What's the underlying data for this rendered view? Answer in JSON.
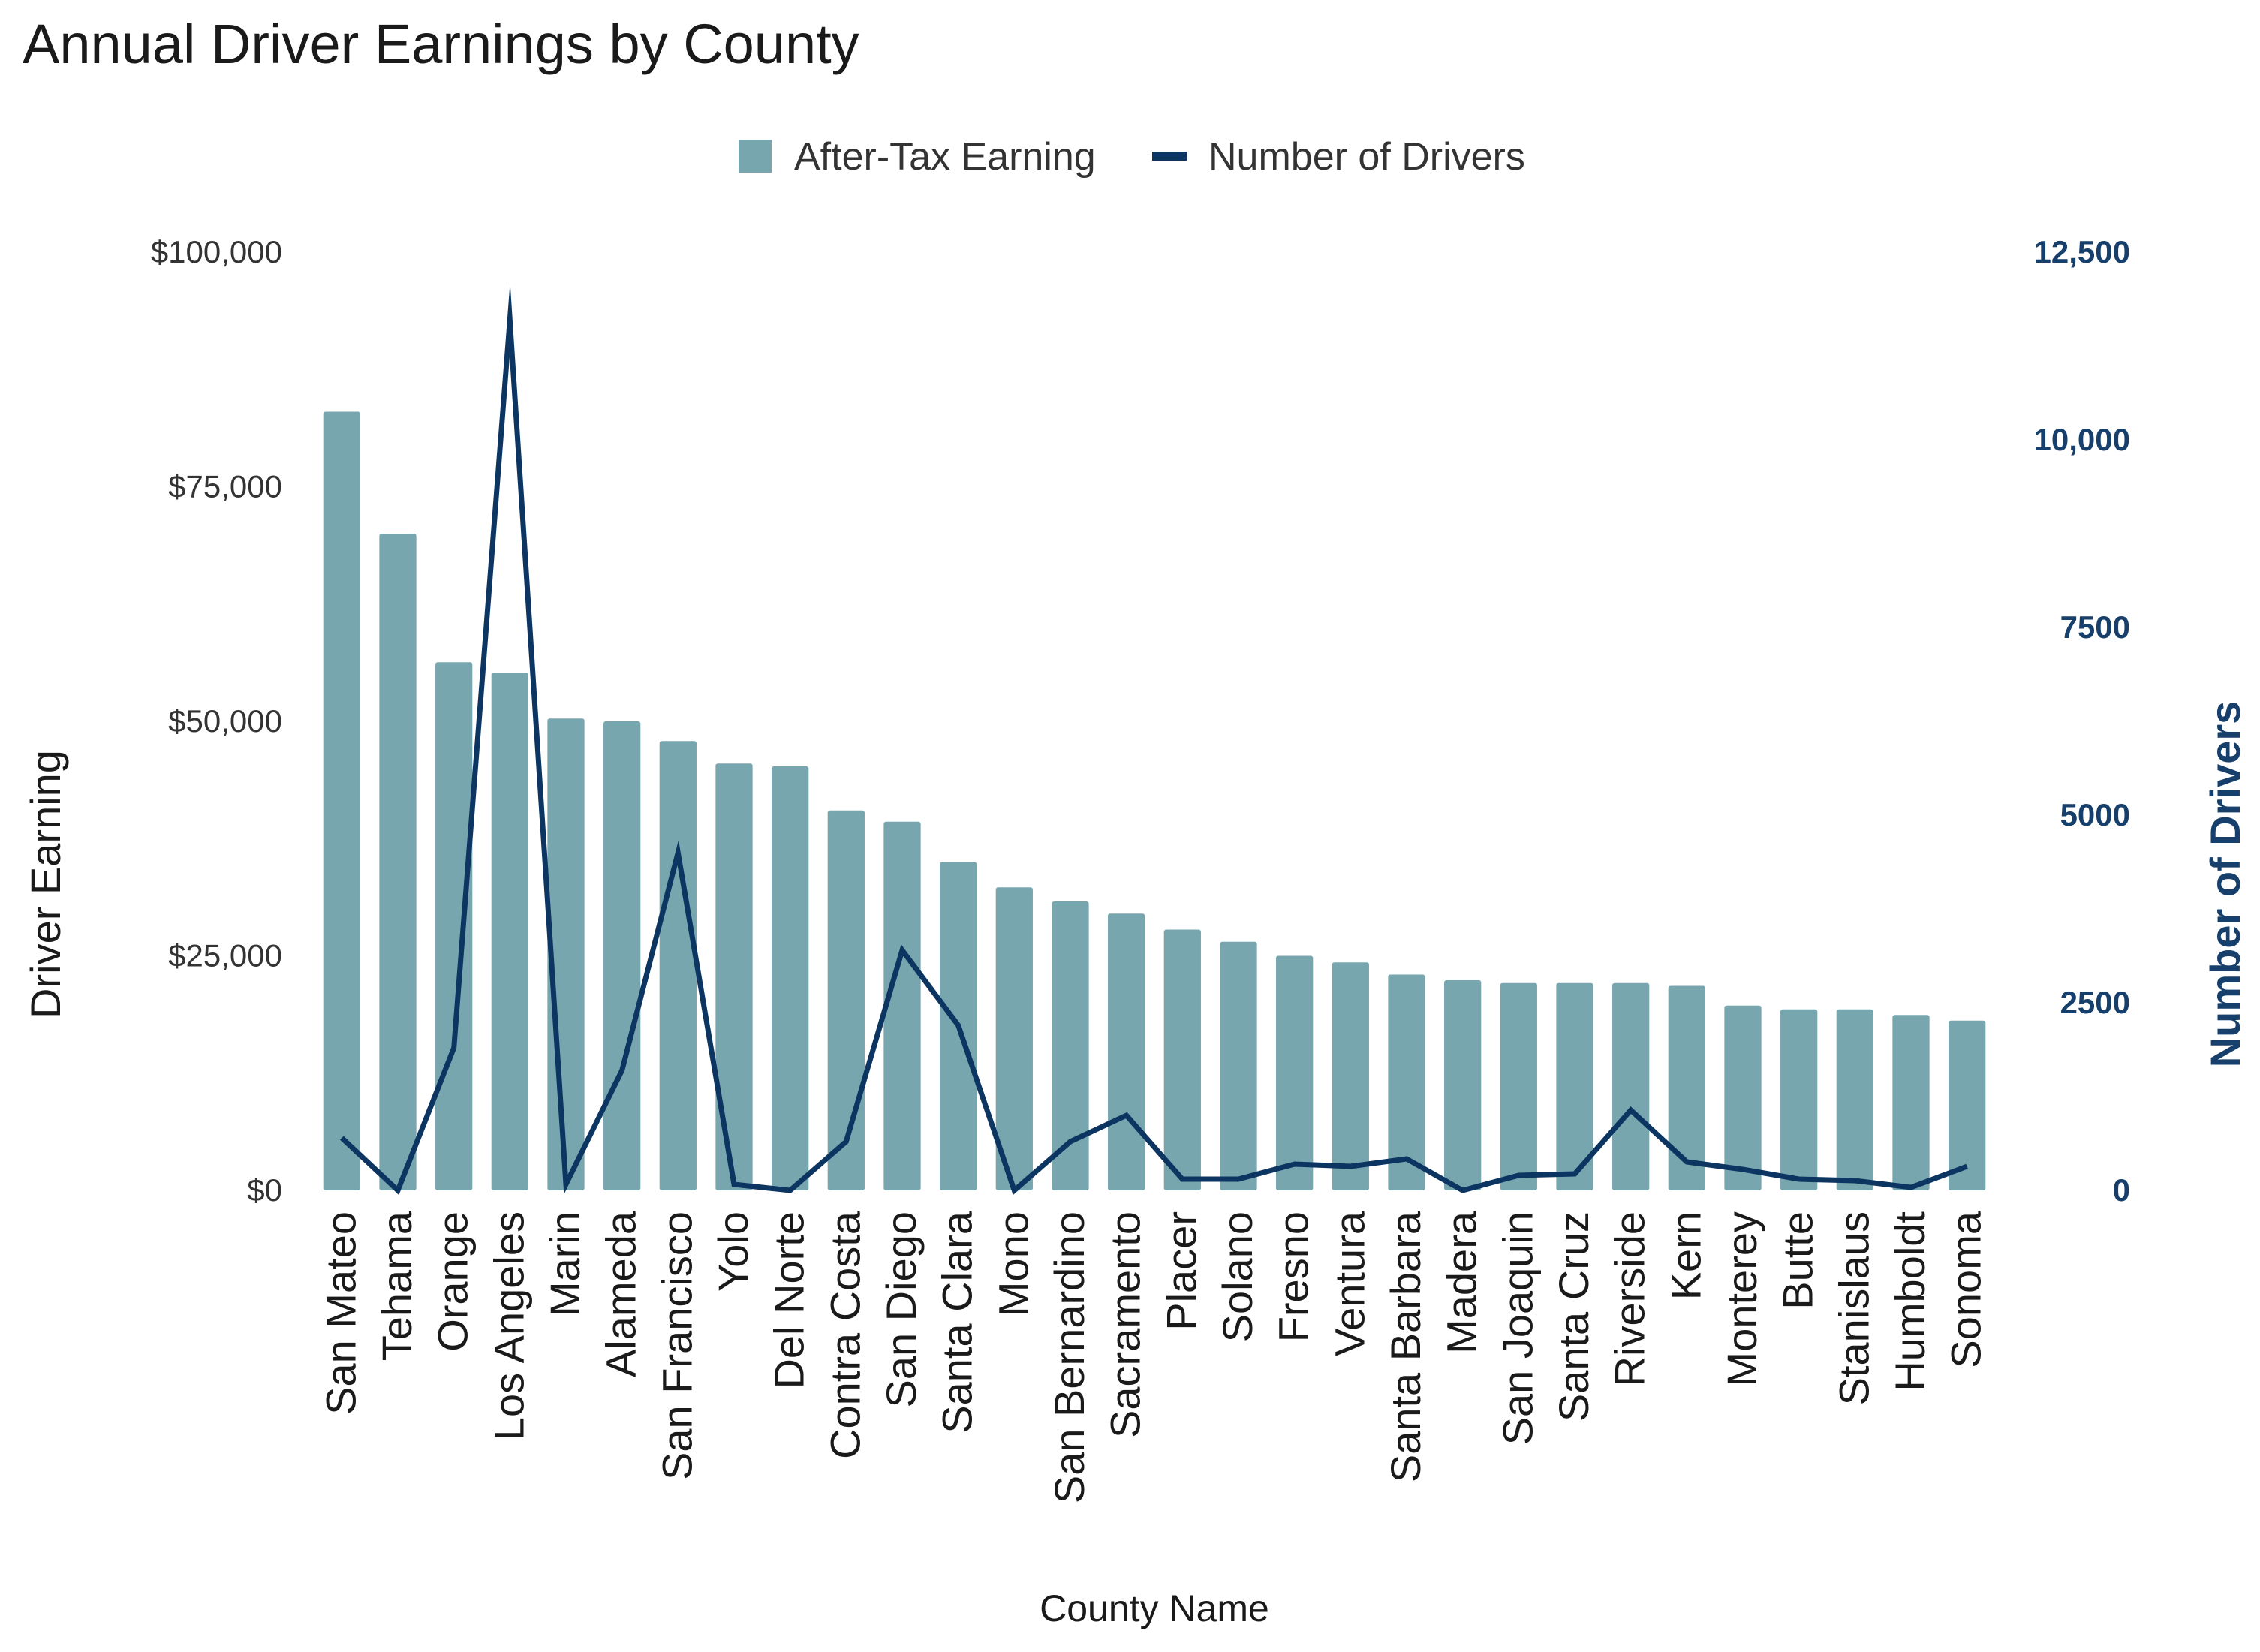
{
  "chart_data": {
    "type": "bar",
    "title": "Annual Driver Earnings by County",
    "xlabel": "County Name",
    "ylabel": "Driver Earning",
    "y2label": "Number of Drivers",
    "ylim": [
      0,
      100000
    ],
    "y2lim": [
      0,
      12500
    ],
    "yticks": [
      "$0",
      "$25,000",
      "$50,000",
      "$75,000",
      "$100,000"
    ],
    "y2ticks": [
      "0",
      "2500",
      "5000",
      "7500",
      "10,000",
      "12,500"
    ],
    "grid": false,
    "legend_position": "top-center",
    "colors": {
      "bar": "#78a6ae",
      "line": "#0d3561",
      "right_axis_text": "#163f6b"
    },
    "categories": [
      "San Mateo",
      "Tehama",
      "Orange",
      "Los Angeles",
      "Marin",
      "Alameda",
      "San Francisco",
      "Yolo",
      "Del Norte",
      "Contra Costa",
      "San Diego",
      "Santa Clara",
      "Mono",
      "San Bernardino",
      "Sacramento",
      "Placer",
      "Solano",
      "Fresno",
      "Ventura",
      "Santa Barbara",
      "Madera",
      "San Joaquin",
      "Santa Cruz",
      "Riverside",
      "Kern",
      "Monterey",
      "Butte",
      "Stanislaus",
      "Humboldt",
      "Sonoma"
    ],
    "series": [
      {
        "name": "After-Tax Earning",
        "type": "bar",
        "axis": "left",
        "values": [
          83000,
          70000,
          56300,
          55200,
          50300,
          50000,
          47900,
          45500,
          45200,
          40500,
          39300,
          35000,
          32300,
          30800,
          29500,
          27800,
          26500,
          25000,
          24300,
          23000,
          22400,
          22100,
          22100,
          22100,
          21800,
          19700,
          19300,
          19300,
          18700,
          18100
        ]
      },
      {
        "name": "Number of Drivers",
        "type": "line",
        "axis": "right",
        "values": [
          700,
          0,
          1900,
          11600,
          80,
          1600,
          4500,
          80,
          0,
          650,
          3200,
          2200,
          0,
          650,
          1000,
          150,
          150,
          350,
          320,
          420,
          0,
          200,
          220,
          1070,
          380,
          280,
          150,
          130,
          40,
          320
        ]
      }
    ]
  }
}
